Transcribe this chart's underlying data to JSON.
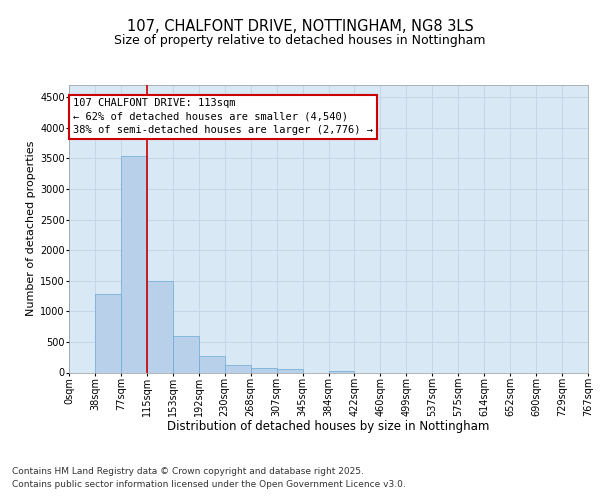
{
  "title_line1": "107, CHALFONT DRIVE, NOTTINGHAM, NG8 3LS",
  "title_line2": "Size of property relative to detached houses in Nottingham",
  "xlabel": "Distribution of detached houses by size in Nottingham",
  "ylabel": "Number of detached properties",
  "bar_values": [
    0,
    1290,
    3540,
    1490,
    590,
    265,
    130,
    75,
    55,
    0,
    25,
    0,
    0,
    0,
    0,
    0,
    0,
    0,
    0,
    0
  ],
  "bar_labels": [
    "0sqm",
    "38sqm",
    "77sqm",
    "115sqm",
    "153sqm",
    "192sqm",
    "230sqm",
    "268sqm",
    "307sqm",
    "345sqm",
    "384sqm",
    "422sqm",
    "460sqm",
    "499sqm",
    "537sqm",
    "575sqm",
    "614sqm",
    "652sqm",
    "690sqm",
    "729sqm",
    "767sqm"
  ],
  "bar_color": "#b8d0ea",
  "bar_edge_color": "#6aaad4",
  "grid_color": "#c0d4e8",
  "background_color": "#d8e8f4",
  "vline_color": "#cc0000",
  "vline_pos": 3.0,
  "annotation_line1": "107 CHALFONT DRIVE: 113sqm",
  "annotation_line2": "← 62% of detached houses are smaller (4,540)",
  "annotation_line3": "38% of semi-detached houses are larger (2,776) →",
  "annotation_box_edgecolor": "#cc0000",
  "ylim": [
    0,
    4700
  ],
  "yticks": [
    0,
    500,
    1000,
    1500,
    2000,
    2500,
    3000,
    3500,
    4000,
    4500
  ],
  "footer_line1": "Contains HM Land Registry data © Crown copyright and database right 2025.",
  "footer_line2": "Contains public sector information licensed under the Open Government Licence v3.0.",
  "title_fontsize": 10.5,
  "subtitle_fontsize": 9,
  "xlabel_fontsize": 8.5,
  "ylabel_fontsize": 8,
  "tick_fontsize": 7,
  "footer_fontsize": 6.5,
  "annotation_fontsize": 7.5
}
